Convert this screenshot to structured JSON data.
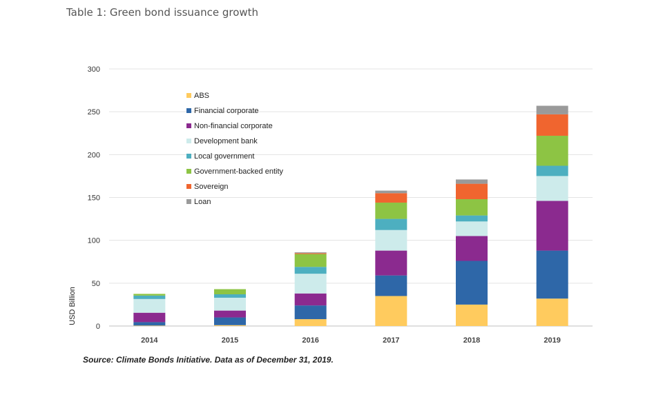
{
  "page": {
    "title": "Table 1: Green bond issuance growth",
    "source": "Source: Climate Bonds Initiative. Data as of December 31, 2019."
  },
  "chart_data": {
    "type": "bar",
    "stacked": true,
    "title": "Table 1: Green bond issuance growth",
    "xlabel": "",
    "ylabel": "USD Billion",
    "ylim": [
      0,
      300
    ],
    "yticks": [
      0,
      50,
      100,
      150,
      200,
      250,
      300
    ],
    "grid": true,
    "legend_position": "top-left",
    "categories": [
      "2014",
      "2015",
      "2016",
      "2017",
      "2018",
      "2019"
    ],
    "series": [
      {
        "name": "ABS",
        "color": "#FFCB5E",
        "values": [
          0.5,
          1,
          8,
          35,
          25,
          32
        ]
      },
      {
        "name": "Financial corporate",
        "color": "#2E67A8",
        "values": [
          4,
          9,
          16,
          24,
          51,
          56
        ]
      },
      {
        "name": "Non-financial corporate",
        "color": "#8B2A8F",
        "values": [
          11,
          8,
          14,
          29,
          29,
          58
        ]
      },
      {
        "name": "Development bank",
        "color": "#CDEBEB",
        "values": [
          16,
          15,
          23,
          24,
          17,
          29
        ]
      },
      {
        "name": "Local government",
        "color": "#4DAFC0",
        "values": [
          4,
          4,
          8,
          13,
          7,
          12
        ]
      },
      {
        "name": "Government-backed entity",
        "color": "#8DC444",
        "values": [
          2,
          6,
          15,
          19,
          19,
          35
        ]
      },
      {
        "name": "Sovereign",
        "color": "#F0652F",
        "values": [
          0,
          0,
          1,
          11,
          18,
          25
        ]
      },
      {
        "name": "Loan",
        "color": "#9A9A9A",
        "values": [
          0,
          0,
          1,
          3,
          5,
          10
        ]
      }
    ]
  }
}
